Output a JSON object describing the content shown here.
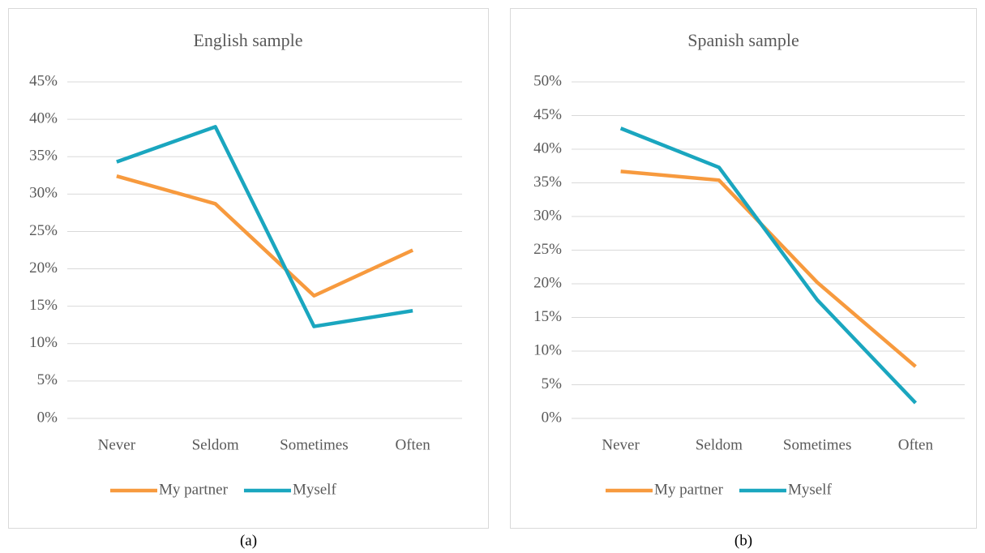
{
  "chart_data": [
    {
      "type": "line",
      "title": "English sample",
      "caption": "(a)",
      "categories": [
        "Never",
        "Seldom",
        "Sometimes",
        "Often"
      ],
      "series": [
        {
          "name": "My partner",
          "color": "#f79a3e",
          "values": [
            32.4,
            28.7,
            16.4,
            22.5
          ]
        },
        {
          "name": "Myself",
          "color": "#1aa6bf",
          "values": [
            34.3,
            39,
            12.3,
            14.4
          ]
        }
      ],
      "ylim": [
        0,
        45
      ],
      "yticks": [
        {
          "value": 0,
          "label": "0%"
        },
        {
          "value": 5,
          "label": "5%"
        },
        {
          "value": 10,
          "label": "10%"
        },
        {
          "value": 15,
          "label": "15%"
        },
        {
          "value": 20,
          "label": "20%"
        },
        {
          "value": 25,
          "label": "25%"
        },
        {
          "value": 30,
          "label": "30%"
        },
        {
          "value": 35,
          "label": "35%"
        },
        {
          "value": 40,
          "label": "40%"
        },
        {
          "value": 45,
          "label": "45%"
        }
      ],
      "grid": true,
      "legend": "bottom"
    },
    {
      "type": "line",
      "title": "Spanish sample",
      "caption": "(b)",
      "categories": [
        "Never",
        "Seldom",
        "Sometimes",
        "Often"
      ],
      "series": [
        {
          "name": "My partner",
          "color": "#f79a3e",
          "values": [
            36.7,
            35.4,
            20.2,
            7.7
          ]
        },
        {
          "name": "Myself",
          "color": "#1aa6bf",
          "values": [
            43.1,
            37.3,
            17.6,
            2.3
          ]
        }
      ],
      "ylim": [
        0,
        50
      ],
      "yticks": [
        {
          "value": 0,
          "label": "0%"
        },
        {
          "value": 5,
          "label": "5%"
        },
        {
          "value": 10,
          "label": "10%"
        },
        {
          "value": 15,
          "label": "15%"
        },
        {
          "value": 20,
          "label": "20%"
        },
        {
          "value": 25,
          "label": "25%"
        },
        {
          "value": 30,
          "label": "30%"
        },
        {
          "value": 35,
          "label": "35%"
        },
        {
          "value": 40,
          "label": "40%"
        },
        {
          "value": 45,
          "label": "45%"
        },
        {
          "value": 50,
          "label": "50%"
        }
      ],
      "grid": true,
      "legend": "bottom"
    }
  ]
}
